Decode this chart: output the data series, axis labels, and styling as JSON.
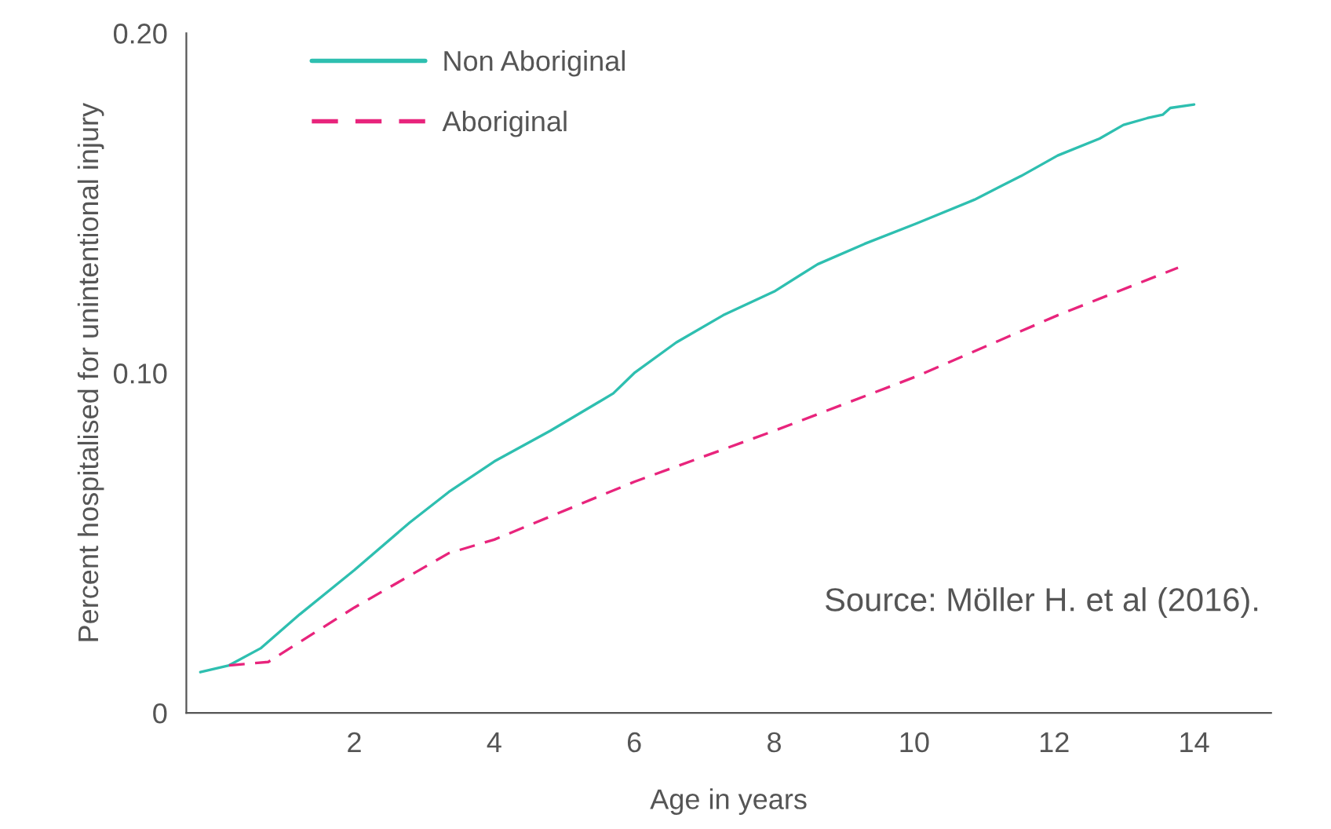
{
  "chart_data": {
    "type": "line",
    "xlabel": "Age in years",
    "ylabel": "Percent hospitalised for unintentional injury",
    "annotations": [
      "Source: Möller H. et al (2016)."
    ],
    "xlim": [
      -0.4,
      15.1
    ],
    "ylim": [
      0,
      0.2
    ],
    "xticks": [
      2,
      4,
      6,
      8,
      10,
      12,
      14
    ],
    "yticks": [
      {
        "value": 0,
        "label": "0"
      },
      {
        "value": 0.1,
        "label": "0.10"
      },
      {
        "value": 0.2,
        "label": "0.20"
      }
    ],
    "grid": false,
    "legend": "top left",
    "marker": "none",
    "series": [
      {
        "name": "Non Aboriginal",
        "color": "#2ebfb0",
        "line_style": "solid",
        "x": [
          -0.2,
          0.21,
          0.66,
          1.22,
          2.0,
          2.79,
          3.35,
          4.0,
          4.8,
          5.7,
          6.0,
          6.6,
          7.27,
          8.0,
          8.62,
          9.29,
          10.03,
          10.86,
          11.53,
          12.05,
          12.65,
          12.99,
          13.33,
          13.55,
          13.66,
          14.0
        ],
        "values": [
          0.012,
          0.014,
          0.019,
          0.029,
          0.042,
          0.056,
          0.065,
          0.074,
          0.083,
          0.094,
          0.1,
          0.109,
          0.117,
          0.124,
          0.132,
          0.138,
          0.144,
          0.151,
          0.158,
          0.164,
          0.169,
          0.173,
          0.175,
          0.176,
          0.178,
          0.179
        ]
      },
      {
        "name": "Aboriginal",
        "color": "#e8247c",
        "line_style": "dashed",
        "x": [
          0.21,
          0.77,
          2.0,
          3.35,
          4.0,
          6.0,
          8.0,
          10.03,
          12.05,
          13.77
        ],
        "values": [
          0.014,
          0.015,
          0.031,
          0.047,
          0.051,
          0.068,
          0.083,
          0.099,
          0.117,
          0.131
        ]
      }
    ]
  }
}
